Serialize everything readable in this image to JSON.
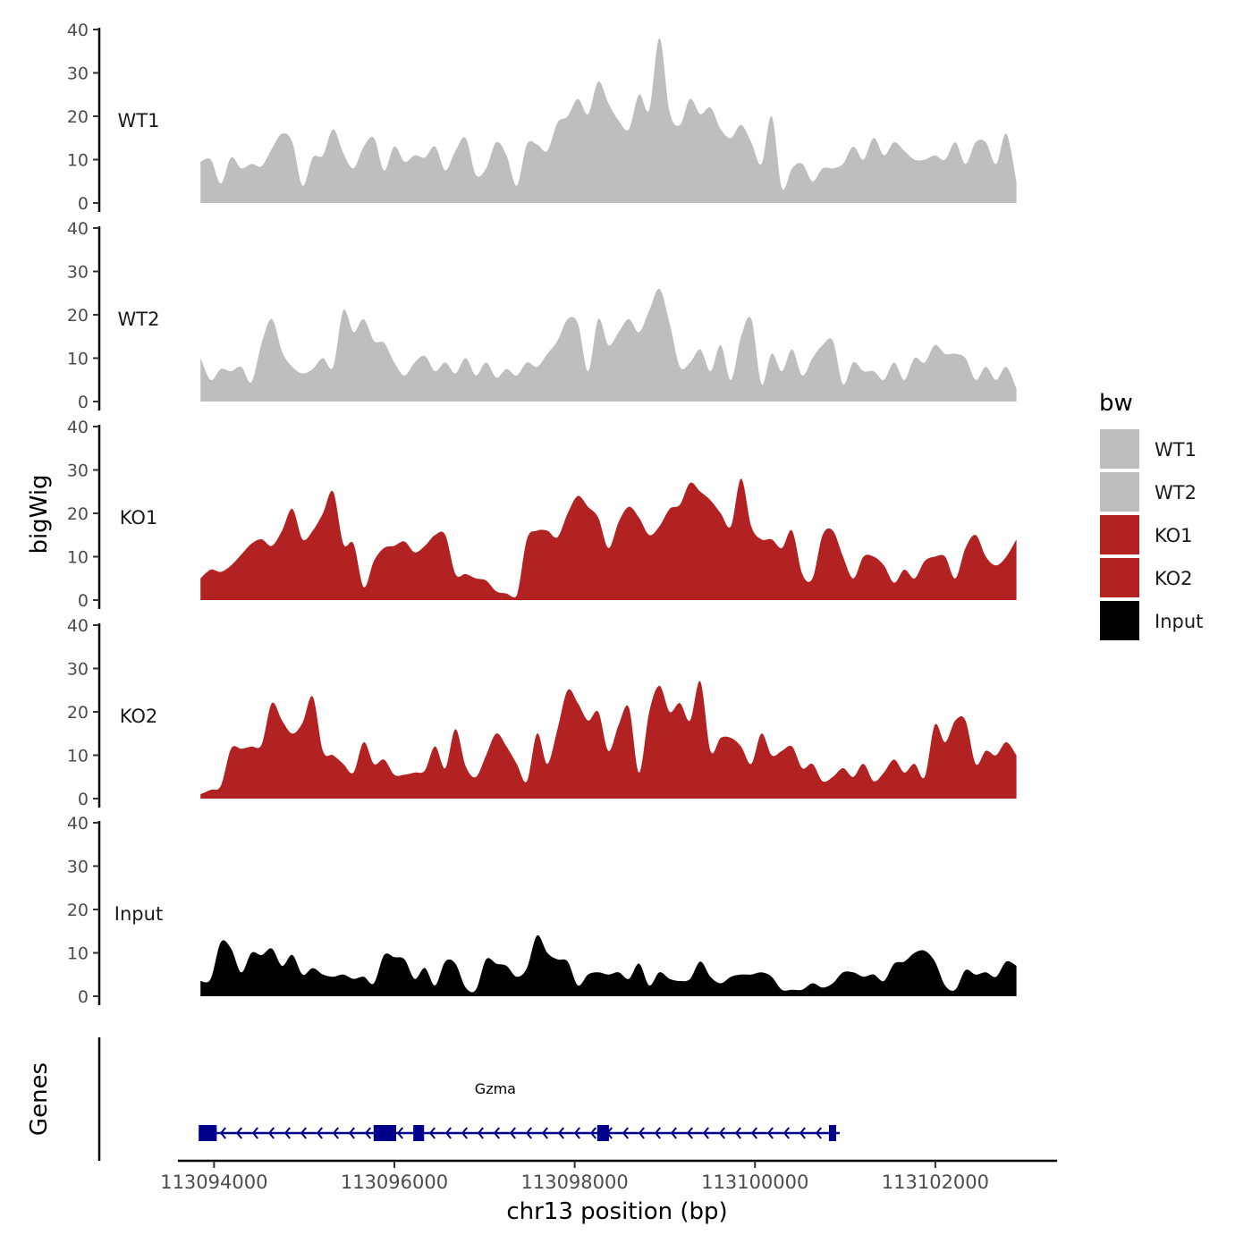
{
  "chart_data": {
    "type": "area",
    "title": "",
    "ylabel": "bigWig",
    "xlabel": "chr13 position (bp)",
    "xlim": [
      113093600,
      113103350
    ],
    "ylim": [
      0,
      40
    ],
    "x_ticks": [
      113094000,
      113096000,
      113098000,
      113100000,
      113102000
    ],
    "x_tick_labels": [
      "113094000",
      "113096000",
      "113098000",
      "113100000",
      "113102000"
    ],
    "y_ticks": [
      0,
      10,
      20,
      30,
      40
    ],
    "y_tick_labels": [
      "0",
      "10",
      "20",
      "30",
      "40"
    ],
    "x_range_start": 113093850,
    "x_range_end": 113102900,
    "legend": {
      "title": "bw",
      "position": "right",
      "entries": [
        {
          "label": "WT1",
          "color": "#bebebe"
        },
        {
          "label": "WT2",
          "color": "#bebebe"
        },
        {
          "label": "KO1",
          "color": "#b22222"
        },
        {
          "label": "KO2",
          "color": "#b22222"
        },
        {
          "label": "Input",
          "color": "#000000"
        }
      ]
    },
    "series": [
      {
        "name": "WT1",
        "color": "#bebebe",
        "values": [
          9.5,
          10,
          4.5,
          10.5,
          8,
          9,
          8.5,
          12.5,
          16,
          14,
          4,
          10.5,
          11,
          17,
          11.5,
          8,
          13,
          15,
          7.5,
          13,
          9.5,
          11,
          10.5,
          13,
          7.5,
          12,
          15,
          6.5,
          8,
          14,
          11,
          4,
          13.5,
          13.5,
          12,
          18.5,
          20,
          24,
          20.5,
          28,
          23,
          19,
          17,
          25,
          21.5,
          38,
          21,
          18,
          24,
          20.5,
          22,
          17,
          15,
          18,
          14,
          9,
          20,
          3.5,
          8,
          9,
          5,
          8,
          8,
          9,
          13,
          10,
          15,
          11,
          14,
          12,
          10,
          10,
          11,
          10,
          14,
          9,
          14,
          14,
          9,
          16,
          5
        ]
      },
      {
        "name": "WT2",
        "color": "#bebebe",
        "values": [
          10,
          5,
          7.5,
          7,
          8,
          4.5,
          13.5,
          19,
          11.5,
          8,
          6.5,
          7.5,
          10,
          8,
          21,
          16,
          19,
          14,
          13.5,
          9,
          6,
          9,
          10.5,
          7,
          9,
          6.5,
          10,
          6,
          9,
          5.5,
          7.5,
          6,
          9,
          8,
          11,
          14,
          19,
          18,
          7,
          19,
          13,
          16,
          19,
          16,
          21,
          26,
          18,
          8,
          9,
          12,
          7,
          13,
          5,
          15,
          19,
          4,
          11,
          7,
          12,
          6,
          10,
          13,
          14,
          4,
          9,
          7,
          7,
          5,
          9,
          5,
          10,
          9,
          13,
          11,
          11,
          10,
          5,
          8,
          5,
          8,
          3
        ]
      },
      {
        "name": "KO1",
        "color": "#b22222",
        "values": [
          5,
          7,
          6.5,
          8,
          10.5,
          13,
          14,
          12.5,
          16,
          21,
          14,
          16,
          20,
          25,
          13,
          13,
          3,
          9,
          12,
          12.5,
          13.5,
          11,
          12.5,
          15,
          15,
          6,
          6,
          5,
          4.5,
          2,
          1.5,
          1,
          14,
          16,
          16,
          14.5,
          20,
          24,
          21.5,
          19,
          12,
          18,
          21.5,
          19,
          15,
          17,
          21,
          22,
          27,
          25,
          23,
          20,
          17,
          28,
          17,
          14,
          14,
          12,
          16,
          6,
          5,
          15,
          16,
          10,
          5,
          10,
          10,
          8,
          4,
          7,
          5,
          9,
          10,
          10,
          5,
          12,
          15,
          10,
          8,
          10,
          14
        ]
      },
      {
        "name": "KO2",
        "color": "#b22222",
        "values": [
          1,
          2,
          3,
          11.5,
          11.5,
          12,
          12.5,
          22,
          18,
          15,
          17.5,
          23.5,
          11,
          10,
          8,
          6,
          13,
          8,
          9,
          5.5,
          5.5,
          6,
          6.5,
          12,
          7,
          16,
          7.5,
          5,
          10,
          15,
          12,
          8,
          4,
          15,
          8,
          16,
          25,
          22,
          18,
          20,
          11,
          17,
          21,
          6,
          20,
          26,
          20,
          22,
          18,
          27,
          11,
          14,
          14,
          12,
          8,
          15,
          10,
          11,
          12,
          7,
          8,
          4,
          5,
          7,
          5,
          8,
          4,
          6,
          9,
          6,
          8,
          5,
          17,
          13,
          18,
          18,
          8,
          11,
          10,
          13,
          10
        ]
      },
      {
        "name": "Input",
        "color": "#000000",
        "values": [
          3.5,
          4,
          12.5,
          11,
          5.5,
          10,
          9.5,
          11,
          7,
          9.5,
          5,
          6.5,
          5,
          4.5,
          5,
          4,
          4.5,
          3,
          9.5,
          9,
          8.5,
          4,
          6.5,
          2.5,
          8,
          7.5,
          2,
          1.5,
          8.5,
          7.5,
          7,
          4.5,
          6.5,
          14,
          10,
          8.5,
          8,
          2.5,
          5,
          5.5,
          5,
          5.5,
          4,
          7.5,
          2.5,
          5.5,
          4,
          3.5,
          4,
          8,
          4.5,
          3,
          4.5,
          5,
          5,
          5.5,
          4.5,
          1.5,
          1.5,
          1.5,
          3,
          2,
          3,
          5.5,
          5.5,
          4.5,
          5,
          3.5,
          7.5,
          8,
          10,
          10.5,
          8,
          2.5,
          1.5,
          6,
          5,
          5.5,
          4.5,
          8,
          7
        ]
      }
    ]
  },
  "track_labels": [
    "WT1",
    "WT2",
    "KO1",
    "KO2",
    "Input"
  ],
  "genes_track": {
    "label": "Genes",
    "gene_name": "Gzma",
    "color": "#00008b",
    "gene_start": 113093830,
    "gene_end": 113100940,
    "exons": [
      {
        "start": 113093830,
        "end": 113094030
      },
      {
        "start": 113095770,
        "end": 113096020
      },
      {
        "start": 113096210,
        "end": 113096330
      },
      {
        "start": 113098250,
        "end": 113098380
      },
      {
        "start": 113100820,
        "end": 113100900
      }
    ]
  }
}
